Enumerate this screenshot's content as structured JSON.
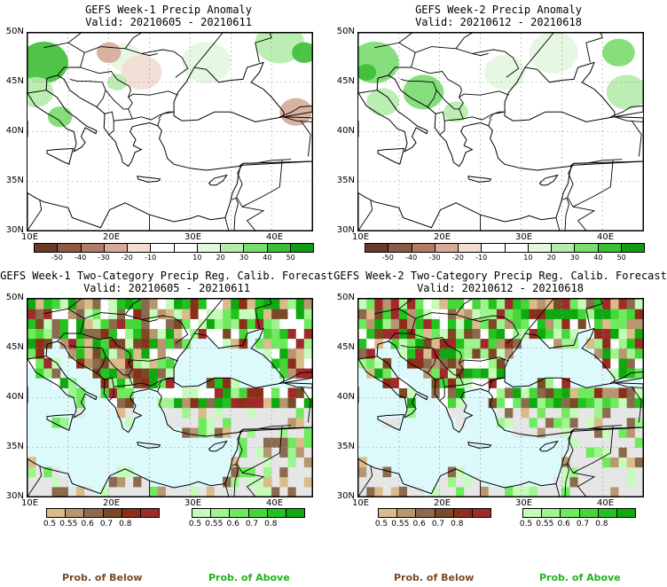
{
  "panels": [
    {
      "title": "GEFS Week-1 Precip Anomaly",
      "valid": "Valid: 20210605 - 20210611"
    },
    {
      "title": "GEFS Week-2 Precip Anomaly",
      "valid": "Valid: 20210612 - 20210618"
    },
    {
      "title": "GEFS Week-1 Two-Category Precip Reg. Calib. Forecast",
      "valid": "Valid: 20210605 - 20210611"
    },
    {
      "title": "GEFS Week-2 Two-Category Precip Reg. Calib. Forecast",
      "valid": "Valid: 20210612 - 20210618"
    }
  ],
  "lat_labels": [
    "50N",
    "45N",
    "40N",
    "35N",
    "30N"
  ],
  "lon_labels": [
    "10E",
    "20E",
    "30E",
    "40E"
  ],
  "anomaly_scale": {
    "labels": [
      "-50",
      "-40",
      "-30",
      "-20",
      "-10",
      "10",
      "20",
      "30",
      "40",
      "50"
    ],
    "colors": [
      "#6b3a2a",
      "#8e5a46",
      "#b07c68",
      "#d6aa98",
      "#f2dcd2",
      "#ffffff",
      "#ffffff",
      "#e3f7df",
      "#b5ecac",
      "#79dc6e",
      "#3dbd35",
      "#139a16"
    ]
  },
  "below_scale": {
    "labels": [
      "0.5",
      "0.55",
      "0.6",
      "0.7",
      "0.8"
    ],
    "colors": [
      "#d9bc8a",
      "#b79670",
      "#8c6a4e",
      "#7a4a26",
      "#8b2f1a",
      "#a02a2a"
    ]
  },
  "above_scale": {
    "labels": [
      "0.5",
      "0.55",
      "0.6",
      "0.7",
      "0.8"
    ],
    "colors": [
      "#c6fbbb",
      "#9ef58f",
      "#6fea5e",
      "#47d63a",
      "#22c21f",
      "#10a80f"
    ]
  },
  "legend": {
    "below": "Prob. of Below",
    "above": "Prob. of Above"
  }
}
